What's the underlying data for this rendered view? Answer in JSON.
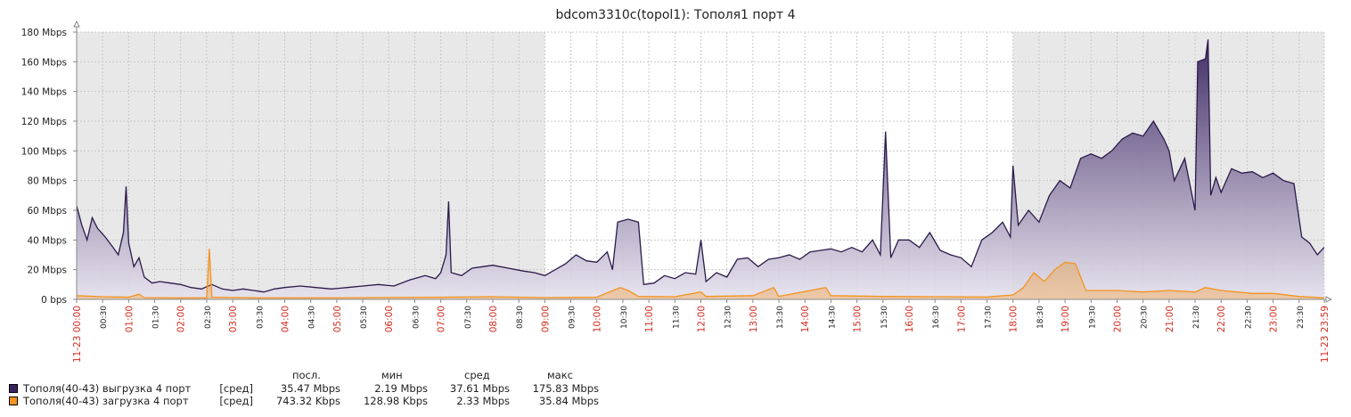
{
  "title": "bdcom3310c(topol1): Тополя1 порт 4",
  "chart_data": {
    "type": "area",
    "title": "bdcom3310c(topol1): Тополя1 порт 4",
    "ylim": [
      0,
      180
    ],
    "y_unit": "Mbps",
    "y_ticks": [
      {
        "v": 0,
        "label": "0 bps"
      },
      {
        "v": 20,
        "label": "20 Mbps"
      },
      {
        "v": 40,
        "label": "40 Mbps"
      },
      {
        "v": 60,
        "label": "60 Mbps"
      },
      {
        "v": 80,
        "label": "80 Mbps"
      },
      {
        "v": 100,
        "label": "100 Mbps"
      },
      {
        "v": 120,
        "label": "120 Mbps"
      },
      {
        "v": 140,
        "label": "140 Mbps"
      },
      {
        "v": 160,
        "label": "160 Mbps"
      },
      {
        "v": 180,
        "label": "180 Mbps"
      }
    ],
    "x_range_hours": [
      0,
      23.9833
    ],
    "x_ticks": [
      {
        "h": 0,
        "label": "11-23 00:00",
        "red": true
      },
      {
        "h": 0.5,
        "label": "00:30",
        "red": false
      },
      {
        "h": 1,
        "label": "01:00",
        "red": true
      },
      {
        "h": 1.5,
        "label": "01:30",
        "red": false
      },
      {
        "h": 2,
        "label": "02:00",
        "red": true
      },
      {
        "h": 2.5,
        "label": "02:30",
        "red": false
      },
      {
        "h": 3,
        "label": "03:00",
        "red": true
      },
      {
        "h": 3.5,
        "label": "03:30",
        "red": false
      },
      {
        "h": 4,
        "label": "04:00",
        "red": true
      },
      {
        "h": 4.5,
        "label": "04:30",
        "red": false
      },
      {
        "h": 5,
        "label": "05:00",
        "red": true
      },
      {
        "h": 5.5,
        "label": "05:30",
        "red": false
      },
      {
        "h": 6,
        "label": "06:00",
        "red": true
      },
      {
        "h": 6.5,
        "label": "06:30",
        "red": false
      },
      {
        "h": 7,
        "label": "07:00",
        "red": true
      },
      {
        "h": 7.5,
        "label": "07:30",
        "red": false
      },
      {
        "h": 8,
        "label": "08:00",
        "red": true
      },
      {
        "h": 8.5,
        "label": "08:30",
        "red": false
      },
      {
        "h": 9,
        "label": "09:00",
        "red": true
      },
      {
        "h": 9.5,
        "label": "09:30",
        "red": false
      },
      {
        "h": 10,
        "label": "10:00",
        "red": true
      },
      {
        "h": 10.5,
        "label": "10:30",
        "red": false
      },
      {
        "h": 11,
        "label": "11:00",
        "red": true
      },
      {
        "h": 11.5,
        "label": "11:30",
        "red": false
      },
      {
        "h": 12,
        "label": "12:00",
        "red": true
      },
      {
        "h": 12.5,
        "label": "12:30",
        "red": false
      },
      {
        "h": 13,
        "label": "13:00",
        "red": true
      },
      {
        "h": 13.5,
        "label": "13:30",
        "red": false
      },
      {
        "h": 14,
        "label": "14:00",
        "red": true
      },
      {
        "h": 14.5,
        "label": "14:30",
        "red": false
      },
      {
        "h": 15,
        "label": "15:00",
        "red": true
      },
      {
        "h": 15.5,
        "label": "15:30",
        "red": false
      },
      {
        "h": 16,
        "label": "16:00",
        "red": true
      },
      {
        "h": 16.5,
        "label": "16:30",
        "red": false
      },
      {
        "h": 17,
        "label": "17:00",
        "red": true
      },
      {
        "h": 17.5,
        "label": "17:30",
        "red": false
      },
      {
        "h": 18,
        "label": "18:00",
        "red": true
      },
      {
        "h": 18.5,
        "label": "18:30",
        "red": false
      },
      {
        "h": 19,
        "label": "19:00",
        "red": true
      },
      {
        "h": 19.5,
        "label": "19:30",
        "red": false
      },
      {
        "h": 20,
        "label": "20:00",
        "red": true
      },
      {
        "h": 20.5,
        "label": "20:30",
        "red": false
      },
      {
        "h": 21,
        "label": "21:00",
        "red": true
      },
      {
        "h": 21.5,
        "label": "21:30",
        "red": false
      },
      {
        "h": 22,
        "label": "22:00",
        "red": true
      },
      {
        "h": 22.5,
        "label": "22:30",
        "red": false
      },
      {
        "h": 23,
        "label": "23:00",
        "red": true
      },
      {
        "h": 23.5,
        "label": "23:30",
        "red": false
      },
      {
        "h": 23.9833,
        "label": "11-23 23:59",
        "red": true
      }
    ],
    "night_bands_hours": [
      [
        0,
        9
      ],
      [
        18,
        23.9833
      ]
    ],
    "colors": {
      "upload_line": "#2b1a4a",
      "upload_fill_top": "#3a2460",
      "upload_fill_bottom": "#e6e2ee",
      "download": "#f39421",
      "night_band": "#e8e8e8",
      "grid": "#c8c8c8",
      "tick_red": "#d42b1e"
    },
    "series": [
      {
        "name": "Тополя(40-43) выгрузка 4 порт",
        "color": "#2b1a4a",
        "points": [
          [
            0.0,
            63
          ],
          [
            0.1,
            50
          ],
          [
            0.2,
            40
          ],
          [
            0.3,
            55
          ],
          [
            0.4,
            48
          ],
          [
            0.55,
            42
          ],
          [
            0.7,
            35
          ],
          [
            0.8,
            30
          ],
          [
            0.9,
            45
          ],
          [
            0.95,
            76
          ],
          [
            1.0,
            38
          ],
          [
            1.1,
            22
          ],
          [
            1.2,
            28
          ],
          [
            1.3,
            15
          ],
          [
            1.45,
            11
          ],
          [
            1.6,
            12
          ],
          [
            1.8,
            11
          ],
          [
            2.0,
            10
          ],
          [
            2.2,
            8
          ],
          [
            2.4,
            7
          ],
          [
            2.6,
            10
          ],
          [
            2.8,
            7
          ],
          [
            3.0,
            6
          ],
          [
            3.2,
            7
          ],
          [
            3.4,
            6
          ],
          [
            3.6,
            5
          ],
          [
            3.8,
            7
          ],
          [
            4.0,
            8
          ],
          [
            4.3,
            9
          ],
          [
            4.6,
            8
          ],
          [
            4.9,
            7
          ],
          [
            5.2,
            8
          ],
          [
            5.5,
            9
          ],
          [
            5.8,
            10
          ],
          [
            6.1,
            9
          ],
          [
            6.4,
            13
          ],
          [
            6.7,
            16
          ],
          [
            6.9,
            14
          ],
          [
            7.0,
            18
          ],
          [
            7.1,
            30
          ],
          [
            7.15,
            66
          ],
          [
            7.2,
            18
          ],
          [
            7.4,
            16
          ],
          [
            7.6,
            21
          ],
          [
            7.8,
            22
          ],
          [
            8.0,
            23
          ],
          [
            8.3,
            21
          ],
          [
            8.6,
            19
          ],
          [
            8.8,
            18
          ],
          [
            9.0,
            16
          ],
          [
            9.2,
            20
          ],
          [
            9.4,
            24
          ],
          [
            9.6,
            30
          ],
          [
            9.8,
            26
          ],
          [
            10.0,
            25
          ],
          [
            10.2,
            32
          ],
          [
            10.3,
            20
          ],
          [
            10.4,
            52
          ],
          [
            10.6,
            54
          ],
          [
            10.8,
            52
          ],
          [
            10.9,
            10
          ],
          [
            11.1,
            11
          ],
          [
            11.3,
            16
          ],
          [
            11.5,
            14
          ],
          [
            11.7,
            18
          ],
          [
            11.9,
            17
          ],
          [
            12.0,
            40
          ],
          [
            12.1,
            12
          ],
          [
            12.3,
            18
          ],
          [
            12.5,
            15
          ],
          [
            12.7,
            27
          ],
          [
            12.9,
            28
          ],
          [
            13.1,
            22
          ],
          [
            13.3,
            27
          ],
          [
            13.5,
            28
          ],
          [
            13.7,
            30
          ],
          [
            13.9,
            27
          ],
          [
            14.1,
            32
          ],
          [
            14.3,
            33
          ],
          [
            14.5,
            34
          ],
          [
            14.7,
            32
          ],
          [
            14.9,
            35
          ],
          [
            15.1,
            32
          ],
          [
            15.3,
            40
          ],
          [
            15.45,
            30
          ],
          [
            15.55,
            113
          ],
          [
            15.65,
            28
          ],
          [
            15.8,
            40
          ],
          [
            16.0,
            40
          ],
          [
            16.2,
            35
          ],
          [
            16.4,
            45
          ],
          [
            16.6,
            33
          ],
          [
            16.8,
            30
          ],
          [
            17.0,
            28
          ],
          [
            17.2,
            22
          ],
          [
            17.4,
            40
          ],
          [
            17.6,
            45
          ],
          [
            17.8,
            52
          ],
          [
            17.95,
            42
          ],
          [
            18.0,
            90
          ],
          [
            18.1,
            50
          ],
          [
            18.3,
            60
          ],
          [
            18.5,
            52
          ],
          [
            18.7,
            70
          ],
          [
            18.9,
            80
          ],
          [
            19.1,
            75
          ],
          [
            19.3,
            95
          ],
          [
            19.5,
            98
          ],
          [
            19.7,
            95
          ],
          [
            19.9,
            100
          ],
          [
            20.1,
            108
          ],
          [
            20.3,
            112
          ],
          [
            20.5,
            110
          ],
          [
            20.7,
            120
          ],
          [
            20.9,
            108
          ],
          [
            21.0,
            100
          ],
          [
            21.1,
            80
          ],
          [
            21.3,
            95
          ],
          [
            21.5,
            60
          ],
          [
            21.55,
            160
          ],
          [
            21.7,
            162
          ],
          [
            21.75,
            175
          ],
          [
            21.8,
            70
          ],
          [
            21.9,
            82
          ],
          [
            22.0,
            72
          ],
          [
            22.2,
            88
          ],
          [
            22.4,
            85
          ],
          [
            22.6,
            86
          ],
          [
            22.8,
            82
          ],
          [
            23.0,
            85
          ],
          [
            23.2,
            80
          ],
          [
            23.4,
            78
          ],
          [
            23.55,
            42
          ],
          [
            23.7,
            38
          ],
          [
            23.85,
            30
          ],
          [
            23.98,
            35
          ]
        ]
      },
      {
        "name": "Тополя(40-43) загрузка 4 порт",
        "color": "#f39421",
        "points": [
          [
            0.0,
            2.5
          ],
          [
            0.5,
            1.8
          ],
          [
            1.0,
            1.5
          ],
          [
            1.2,
            3.5
          ],
          [
            1.3,
            1.2
          ],
          [
            2.0,
            1.0
          ],
          [
            2.5,
            1.0
          ],
          [
            2.55,
            34
          ],
          [
            2.6,
            1.5
          ],
          [
            3.5,
            1.0
          ],
          [
            5.0,
            1.0
          ],
          [
            7.0,
            1.5
          ],
          [
            8.0,
            1.8
          ],
          [
            9.0,
            1.2
          ],
          [
            10.0,
            1.5
          ],
          [
            10.45,
            8
          ],
          [
            10.6,
            6
          ],
          [
            10.8,
            2
          ],
          [
            11.5,
            1.8
          ],
          [
            12.0,
            5
          ],
          [
            12.1,
            2
          ],
          [
            13.0,
            2.5
          ],
          [
            13.4,
            8
          ],
          [
            13.5,
            2
          ],
          [
            14.4,
            8
          ],
          [
            14.5,
            2.5
          ],
          [
            15.5,
            2
          ],
          [
            16.5,
            1.8
          ],
          [
            17.5,
            1.6
          ],
          [
            18.0,
            3
          ],
          [
            18.2,
            8
          ],
          [
            18.4,
            18
          ],
          [
            18.6,
            12
          ],
          [
            18.8,
            20
          ],
          [
            19.0,
            25
          ],
          [
            19.2,
            24
          ],
          [
            19.4,
            6
          ],
          [
            19.6,
            6
          ],
          [
            20.0,
            6
          ],
          [
            20.5,
            5
          ],
          [
            21.0,
            6
          ],
          [
            21.5,
            5
          ],
          [
            21.7,
            8
          ],
          [
            22.0,
            6
          ],
          [
            22.3,
            5
          ],
          [
            22.6,
            4
          ],
          [
            23.0,
            4
          ],
          [
            23.5,
            2
          ],
          [
            23.98,
            1
          ]
        ]
      }
    ]
  },
  "legend": {
    "headers": [
      "посл.",
      "мин",
      "сред",
      "макс"
    ],
    "rows": [
      {
        "name": "Тополя(40-43) выгрузка 4 порт",
        "func": "[сред]",
        "last": "35.47 Mbps",
        "min": "2.19 Mbps",
        "avg": "37.61 Mbps",
        "max": "175.83 Mbps",
        "color": "#3a2460"
      },
      {
        "name": "Тополя(40-43) загрузка 4 порт",
        "func": "[сред]",
        "last": "743.32 Kbps",
        "min": "128.98 Kbps",
        "avg": "2.33 Mbps",
        "max": "35.84 Mbps",
        "color": "#f39421"
      }
    ]
  }
}
